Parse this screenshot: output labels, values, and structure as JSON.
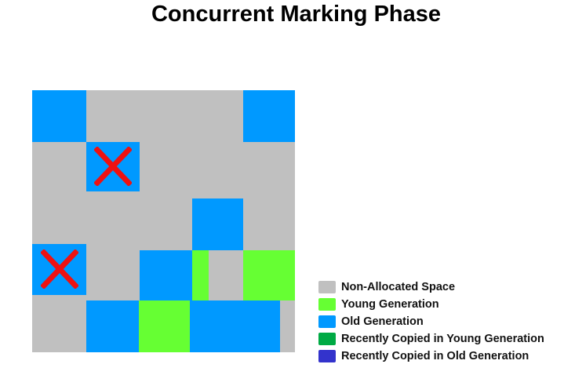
{
  "title": "Concurrent Marking Phase",
  "colors": {
    "non_allocated": "#C0C0C0",
    "young": "#66FF33",
    "old": "#0099FF",
    "copied_young": "#00AA44",
    "copied_old": "#3333CC",
    "mark": "#EE1111"
  },
  "heap_regions": [
    {
      "kind": "old"
    },
    {
      "kind": "old"
    },
    {
      "kind": "old",
      "marked": true
    },
    {
      "kind": "old"
    },
    {
      "kind": "old",
      "marked": true
    },
    {
      "kind": "old"
    },
    {
      "kind": "young"
    },
    {
      "kind": "young"
    },
    {
      "kind": "old"
    },
    {
      "kind": "young"
    },
    {
      "kind": "old"
    }
  ],
  "legend": [
    {
      "label": "Non-Allocated Space",
      "kind": "non_allocated"
    },
    {
      "label": "Young Generation",
      "kind": "young"
    },
    {
      "label": "Old Generation",
      "kind": "old"
    },
    {
      "label": "Recently Copied in Young Generation",
      "kind": "copied_young"
    },
    {
      "label": "Recently Copied in Old Generation",
      "kind": "copied_old"
    }
  ]
}
